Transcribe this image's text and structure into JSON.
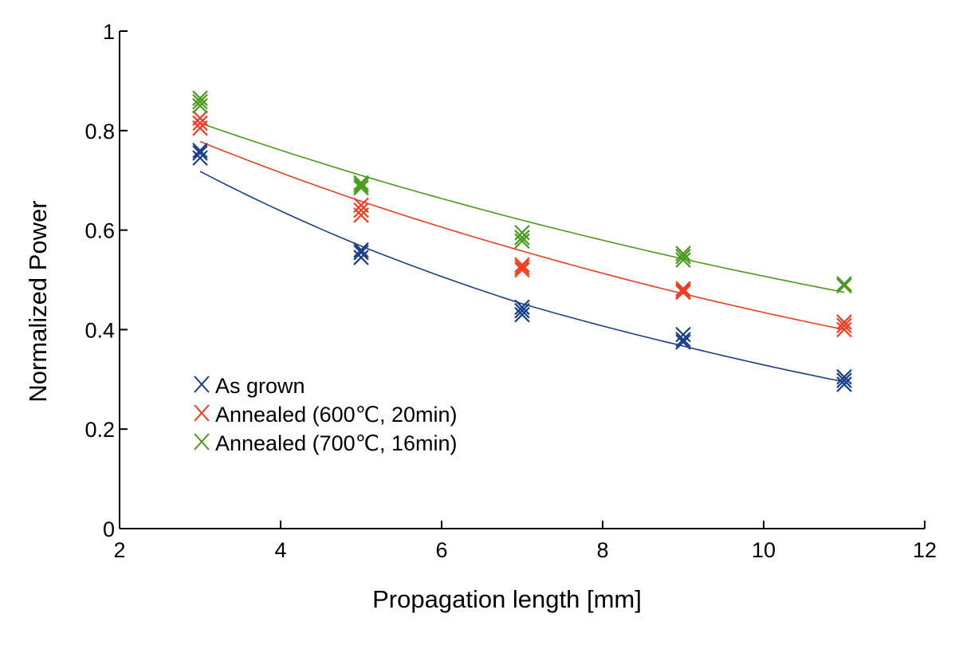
{
  "chart_data": {
    "type": "scatter",
    "title": "",
    "xlabel": "Propagation length [mm]",
    "ylabel": "Normalized Power",
    "xlim": [
      2,
      12
    ],
    "ylim": [
      0,
      1
    ],
    "x_ticks": [
      2,
      4,
      6,
      8,
      10,
      12
    ],
    "y_ticks": [
      0,
      0.2,
      0.4,
      0.6,
      0.8,
      1
    ],
    "y_tick_labels": [
      "0",
      "0.2",
      "0.4",
      "0.6",
      "0.8",
      "1"
    ],
    "x_tick_labels": [
      "2",
      "4",
      "6",
      "8",
      "10",
      "12"
    ],
    "grid": false,
    "legend_position": "lower-left",
    "marker": "x",
    "series": [
      {
        "name": "As grown",
        "color": "#1a3f8a",
        "points": [
          {
            "x": 3,
            "y": 0.745
          },
          {
            "x": 3,
            "y": 0.755
          },
          {
            "x": 3,
            "y": 0.76
          },
          {
            "x": 5,
            "y": 0.545
          },
          {
            "x": 5,
            "y": 0.555
          },
          {
            "x": 5,
            "y": 0.56
          },
          {
            "x": 7,
            "y": 0.43
          },
          {
            "x": 7,
            "y": 0.438
          },
          {
            "x": 7,
            "y": 0.445
          },
          {
            "x": 9,
            "y": 0.375
          },
          {
            "x": 9,
            "y": 0.38
          },
          {
            "x": 9,
            "y": 0.39
          },
          {
            "x": 11,
            "y": 0.29
          },
          {
            "x": 11,
            "y": 0.298
          },
          {
            "x": 11,
            "y": 0.305
          }
        ],
        "fit": {
          "x": [
            3,
            5,
            7,
            9,
            11
          ],
          "y": [
            0.718,
            0.568,
            0.452,
            0.367,
            0.295
          ]
        }
      },
      {
        "name": "Annealed (600℃, 20min)",
        "color": "#f03c20",
        "points": [
          {
            "x": 3,
            "y": 0.805
          },
          {
            "x": 3,
            "y": 0.815
          },
          {
            "x": 3,
            "y": 0.825
          },
          {
            "x": 5,
            "y": 0.63
          },
          {
            "x": 5,
            "y": 0.64
          },
          {
            "x": 5,
            "y": 0.65
          },
          {
            "x": 7,
            "y": 0.52
          },
          {
            "x": 7,
            "y": 0.525
          },
          {
            "x": 7,
            "y": 0.53
          },
          {
            "x": 9,
            "y": 0.475
          },
          {
            "x": 9,
            "y": 0.478
          },
          {
            "x": 9,
            "y": 0.482
          },
          {
            "x": 11,
            "y": 0.4
          },
          {
            "x": 11,
            "y": 0.408
          },
          {
            "x": 11,
            "y": 0.415
          }
        ],
        "fit": {
          "x": [
            3,
            5,
            7,
            9,
            11
          ],
          "y": [
            0.778,
            0.658,
            0.558,
            0.472,
            0.4
          ]
        }
      },
      {
        "name": "Annealed (700℃, 16min)",
        "color": "#4a9a1e",
        "points": [
          {
            "x": 3,
            "y": 0.85
          },
          {
            "x": 3,
            "y": 0.858
          },
          {
            "x": 3,
            "y": 0.865
          },
          {
            "x": 5,
            "y": 0.685
          },
          {
            "x": 5,
            "y": 0.69
          },
          {
            "x": 5,
            "y": 0.695
          },
          {
            "x": 7,
            "y": 0.578
          },
          {
            "x": 7,
            "y": 0.585
          },
          {
            "x": 7,
            "y": 0.595
          },
          {
            "x": 9,
            "y": 0.54
          },
          {
            "x": 9,
            "y": 0.547
          },
          {
            "x": 9,
            "y": 0.553
          },
          {
            "x": 11,
            "y": 0.488
          },
          {
            "x": 11,
            "y": 0.492
          }
        ],
        "fit": {
          "x": [
            3,
            5,
            7,
            9,
            11
          ],
          "y": [
            0.815,
            0.71,
            0.62,
            0.542,
            0.475
          ]
        }
      }
    ]
  }
}
